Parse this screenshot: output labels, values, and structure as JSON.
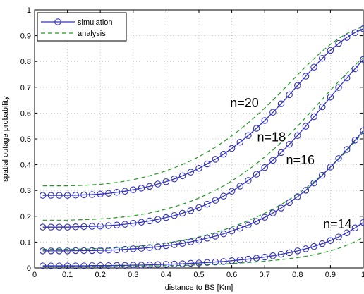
{
  "chart_data": {
    "type": "line",
    "xlabel": "distance to BS [Km]",
    "ylabel": "spatial outage probability",
    "xlim": [
      0,
      1
    ],
    "ylim": [
      0,
      1
    ],
    "xticks": [
      "0",
      "0.1",
      "0.2",
      "0.3",
      "0.4",
      "0.5",
      "0.6",
      "0.7",
      "0.8",
      "0.9",
      "1"
    ],
    "yticks": [
      "0",
      "0.1",
      "0.2",
      "0.3",
      "0.4",
      "0.5",
      "0.6",
      "0.7",
      "0.8",
      "0.9",
      "1"
    ],
    "grid": true,
    "legend": {
      "position": "top-left",
      "entries": [
        {
          "name": "simulation",
          "style": "solid line with circle markers",
          "color": "#3333bb"
        },
        {
          "name": "analysis",
          "style": "dashed line",
          "color": "#229922"
        }
      ]
    },
    "x": [
      0.025,
      0.05,
      0.075,
      0.1,
      0.125,
      0.15,
      0.175,
      0.2,
      0.225,
      0.25,
      0.275,
      0.3,
      0.325,
      0.35,
      0.375,
      0.4,
      0.425,
      0.45,
      0.475,
      0.5,
      0.525,
      0.55,
      0.575,
      0.6,
      0.625,
      0.65,
      0.675,
      0.7,
      0.725,
      0.75,
      0.775,
      0.8,
      0.825,
      0.85,
      0.875,
      0.9,
      0.925,
      0.95,
      0.975,
      1.0
    ],
    "series": [
      {
        "curve": "n=20",
        "simulation": [
          0.281,
          0.281,
          0.281,
          0.281,
          0.282,
          0.283,
          0.284,
          0.286,
          0.289,
          0.293,
          0.297,
          0.303,
          0.309,
          0.316,
          0.325,
          0.334,
          0.345,
          0.357,
          0.371,
          0.386,
          0.403,
          0.421,
          0.441,
          0.463,
          0.487,
          0.513,
          0.541,
          0.571,
          0.603,
          0.636,
          0.671,
          0.707,
          0.743,
          0.778,
          0.812,
          0.843,
          0.87,
          0.893,
          0.912,
          0.927
        ],
        "analysis": [
          0.318,
          0.318,
          0.318,
          0.318,
          0.319,
          0.32,
          0.322,
          0.324,
          0.327,
          0.331,
          0.336,
          0.342,
          0.349,
          0.357,
          0.366,
          0.376,
          0.388,
          0.401,
          0.415,
          0.431,
          0.449,
          0.468,
          0.489,
          0.512,
          0.536,
          0.562,
          0.59,
          0.619,
          0.65,
          0.682,
          0.715,
          0.748,
          0.78,
          0.811,
          0.84,
          0.866,
          0.889,
          0.908,
          0.923,
          0.935
        ]
      },
      {
        "curve": "n=18",
        "simulation": [
          0.158,
          0.158,
          0.158,
          0.158,
          0.159,
          0.16,
          0.161,
          0.162,
          0.164,
          0.166,
          0.169,
          0.173,
          0.177,
          0.182,
          0.188,
          0.195,
          0.203,
          0.212,
          0.222,
          0.234,
          0.247,
          0.262,
          0.278,
          0.297,
          0.317,
          0.339,
          0.363,
          0.389,
          0.417,
          0.447,
          0.479,
          0.513,
          0.549,
          0.586,
          0.624,
          0.662,
          0.699,
          0.736,
          0.772,
          0.808
        ],
        "analysis": [
          0.185,
          0.185,
          0.185,
          0.185,
          0.186,
          0.187,
          0.188,
          0.19,
          0.192,
          0.195,
          0.198,
          0.202,
          0.207,
          0.213,
          0.22,
          0.228,
          0.237,
          0.247,
          0.258,
          0.271,
          0.285,
          0.301,
          0.318,
          0.337,
          0.358,
          0.38,
          0.404,
          0.43,
          0.457,
          0.486,
          0.517,
          0.549,
          0.583,
          0.618,
          0.653,
          0.688,
          0.722,
          0.755,
          0.786,
          0.815
        ]
      },
      {
        "curve": "n=16",
        "simulation": [
          0.066,
          0.066,
          0.066,
          0.066,
          0.067,
          0.067,
          0.067,
          0.068,
          0.069,
          0.07,
          0.072,
          0.074,
          0.076,
          0.079,
          0.082,
          0.086,
          0.09,
          0.095,
          0.101,
          0.108,
          0.115,
          0.123,
          0.132,
          0.143,
          0.154,
          0.166,
          0.18,
          0.196,
          0.213,
          0.232,
          0.253,
          0.276,
          0.301,
          0.329,
          0.359,
          0.391,
          0.424,
          0.459,
          0.495,
          0.532
        ],
        "analysis": [
          0.072,
          0.072,
          0.072,
          0.072,
          0.073,
          0.073,
          0.074,
          0.075,
          0.076,
          0.078,
          0.08,
          0.082,
          0.085,
          0.088,
          0.092,
          0.096,
          0.101,
          0.107,
          0.113,
          0.12,
          0.128,
          0.137,
          0.147,
          0.158,
          0.17,
          0.183,
          0.197,
          0.212,
          0.228,
          0.246,
          0.265,
          0.286,
          0.309,
          0.334,
          0.361,
          0.39,
          0.421,
          0.454,
          0.489,
          0.526
        ]
      },
      {
        "curve": "n=14",
        "simulation": [
          0.008,
          0.008,
          0.008,
          0.008,
          0.008,
          0.008,
          0.009,
          0.009,
          0.009,
          0.01,
          0.01,
          0.011,
          0.011,
          0.012,
          0.013,
          0.014,
          0.015,
          0.016,
          0.018,
          0.019,
          0.021,
          0.023,
          0.025,
          0.028,
          0.031,
          0.034,
          0.038,
          0.042,
          0.047,
          0.053,
          0.059,
          0.066,
          0.074,
          0.083,
          0.094,
          0.106,
          0.12,
          0.136,
          0.155,
          0.176
        ],
        "analysis": [
          0.006,
          0.006,
          0.006,
          0.006,
          0.006,
          0.006,
          0.006,
          0.006,
          0.006,
          0.006,
          0.007,
          0.007,
          0.007,
          0.008,
          0.008,
          0.009,
          0.009,
          0.01,
          0.011,
          0.012,
          0.013,
          0.014,
          0.015,
          0.017,
          0.019,
          0.021,
          0.023,
          0.026,
          0.029,
          0.032,
          0.036,
          0.04,
          0.045,
          0.051,
          0.058,
          0.066,
          0.076,
          0.088,
          0.102,
          0.118
        ]
      }
    ],
    "annotations": [
      {
        "text": "n=20",
        "x": 0.595,
        "y": 0.623
      },
      {
        "text": "n=18",
        "x": 0.677,
        "y": 0.491
      },
      {
        "text": "n=16",
        "x": 0.765,
        "y": 0.401
      },
      {
        "text": "n=14",
        "x": 0.878,
        "y": 0.153
      }
    ]
  },
  "colors": {
    "simulation": "#3333bb",
    "analysis": "#229922",
    "grid": "#bbbbbb",
    "axes": "#000000"
  }
}
